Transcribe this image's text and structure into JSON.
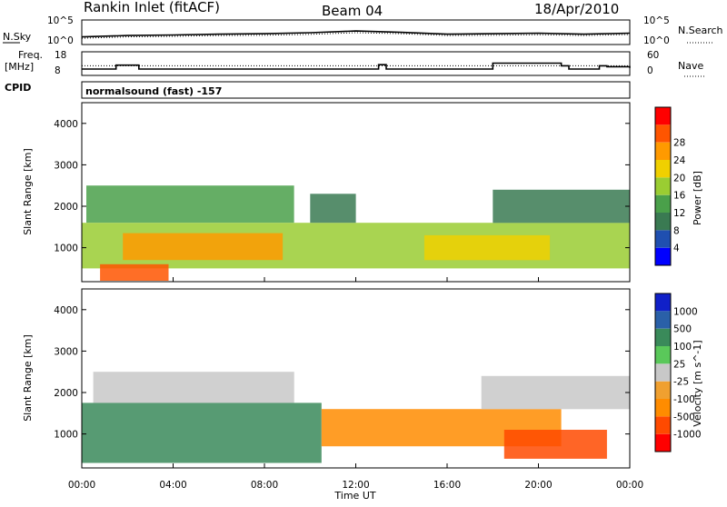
{
  "header": {
    "station": "Rankin Inlet (fitACF)",
    "beam": "Beam 04",
    "date": "18/Apr/2010"
  },
  "panels": {
    "nsky_label": "N.Sky",
    "nsearch_label": "N.Search",
    "freq_label": "Freq.",
    "freq_unit": "[MHz]",
    "nave_label": "Nave",
    "cpid_label": "CPID",
    "cpid_value": "normalsound (fast) -157",
    "noise_ticks_left": [
      "10^5",
      "10^0"
    ],
    "noise_ticks_right": [
      "10^5",
      "10^0"
    ],
    "freq_ticks_left": [
      "18",
      "8"
    ],
    "nave_ticks_right": [
      "60",
      "0"
    ]
  },
  "time_axis": {
    "label": "Time UT",
    "ticks": [
      "00:00",
      "04:00",
      "08:00",
      "12:00",
      "16:00",
      "20:00",
      "00:00"
    ]
  },
  "colors": {
    "power": [
      "#0000ff",
      "#1f4fb0",
      "#3a7a52",
      "#4aa04a",
      "#9acd32",
      "#f0d000",
      "#ff9a00",
      "#ff5500",
      "#ff0000"
    ],
    "velocity": [
      "#ff0000",
      "#ff4a00",
      "#ff8c00",
      "#f0a030",
      "#c8c8c8",
      "#5ac85a",
      "#3a8a5a",
      "#2a60a8",
      "#1020c8"
    ]
  },
  "chart_data": [
    {
      "type": "line",
      "title": "",
      "ylabel": "N.Sky",
      "y2label": "N.Search",
      "yscale": "log",
      "ylim": [
        1,
        100000
      ],
      "x": [
        "00:00",
        "02:00",
        "04:00",
        "06:00",
        "08:00",
        "10:00",
        "12:00",
        "14:00",
        "16:00",
        "18:00",
        "20:00",
        "22:00",
        "24:00"
      ],
      "series": [
        {
          "name": "N.Sky",
          "values": [
            30,
            60,
            80,
            120,
            150,
            250,
            600,
            300,
            120,
            150,
            200,
            120,
            200
          ]
        },
        {
          "name": "N.Search",
          "values": [
            15,
            30,
            40,
            60,
            70,
            110,
            250,
            150,
            60,
            70,
            90,
            60,
            100
          ]
        }
      ]
    },
    {
      "type": "line",
      "title": "",
      "ylabel": "Freq. [MHz]",
      "y2label": "Nave",
      "ylim": [
        8,
        18
      ],
      "y2lim": [
        0,
        60
      ],
      "x": [
        "00:00",
        "01:00",
        "01:30",
        "02:30",
        "03:00",
        "04:00",
        "08:00",
        "12:00",
        "13:00",
        "13:20",
        "16:00",
        "18:00",
        "21:00",
        "21:20",
        "22:40",
        "23:00",
        "24:00"
      ],
      "series": [
        {
          "name": "Freq.",
          "values": [
            10.5,
            10.5,
            12.3,
            10.5,
            10.5,
            10.5,
            10.5,
            10.5,
            12.5,
            10.5,
            10.5,
            13.2,
            12.0,
            10.5,
            12.0,
            11.6,
            11.0
          ]
        },
        {
          "name": "Nave",
          "values": [
            24,
            24,
            24,
            24,
            24,
            24,
            24,
            24,
            24,
            24,
            24,
            24,
            24,
            24,
            24,
            24,
            24
          ]
        }
      ]
    },
    {
      "type": "heatmap",
      "title": "",
      "xlabel": "",
      "ylabel": "Slant Range [km]",
      "colorbar_label": "Power [dB]",
      "colorbar_ticks": [
        4,
        8,
        12,
        16,
        20,
        24,
        28
      ],
      "ylim": [
        180,
        4500
      ],
      "y_ticks": [
        1000,
        2000,
        3000,
        4000
      ],
      "xlim": [
        0,
        24
      ],
      "bands": [
        {
          "t_start": 0.2,
          "t_end": 9.3,
          "range_low": 1600,
          "range_high": 2500,
          "value": 12
        },
        {
          "t_start": 0.0,
          "t_end": 24.0,
          "range_low": 500,
          "range_high": 1600,
          "value": 16
        },
        {
          "t_start": 1.8,
          "t_end": 8.8,
          "range_low": 700,
          "range_high": 1350,
          "value": 26
        },
        {
          "t_start": 15.0,
          "t_end": 20.5,
          "range_low": 700,
          "range_high": 1300,
          "value": 22
        },
        {
          "t_start": 0.8,
          "t_end": 3.8,
          "range_low": 200,
          "range_high": 600,
          "value": 28
        },
        {
          "t_start": 10.0,
          "t_end": 12.0,
          "range_low": 1600,
          "range_high": 2300,
          "value": 10
        },
        {
          "t_start": 18.0,
          "t_end": 24.0,
          "range_low": 1600,
          "range_high": 2400,
          "value": 10
        }
      ]
    },
    {
      "type": "heatmap",
      "title": "",
      "xlabel": "Time UT",
      "ylabel": "Slant Range [km]",
      "colorbar_label": "Velocity [m s^-1]",
      "colorbar_ticks": [
        1000,
        500,
        100,
        25,
        -25,
        -100,
        -500,
        -1000
      ],
      "ylim": [
        180,
        4500
      ],
      "y_ticks": [
        1000,
        2000,
        3000,
        4000
      ],
      "xlim": [
        0,
        24
      ],
      "bands": [
        {
          "t_start": 0.5,
          "t_end": 9.3,
          "range_low": 1750,
          "range_high": 2500,
          "value": 0
        },
        {
          "t_start": 0.0,
          "t_end": 10.5,
          "range_low": 300,
          "range_high": 1750,
          "value": 150
        },
        {
          "t_start": 10.5,
          "t_end": 21.0,
          "range_low": 700,
          "range_high": 1600,
          "value": -300
        },
        {
          "t_start": 18.5,
          "t_end": 23.0,
          "range_low": 400,
          "range_high": 1100,
          "value": -600
        },
        {
          "t_start": 17.5,
          "t_end": 24.0,
          "range_low": 1600,
          "range_high": 2400,
          "value": 0
        }
      ]
    }
  ]
}
